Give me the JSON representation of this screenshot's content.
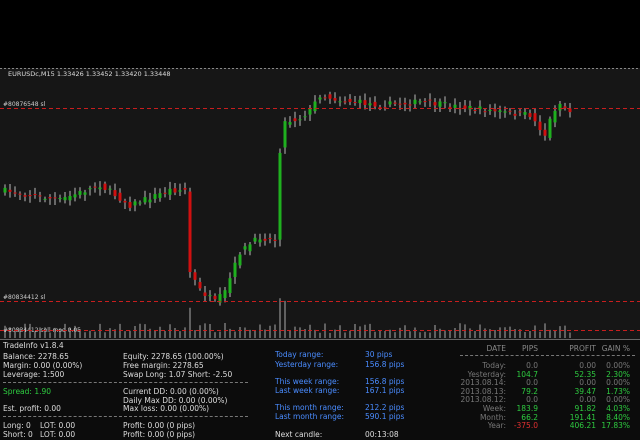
{
  "chart_window": {
    "symbol_line": "EURUSDc,M15 1.33426 1.33452 1.33420 1.33448",
    "sl_line_top": "#80876548 sl",
    "sl_line_bottom": "#80834412 sl",
    "order_line": "#80834412 sell moo 0.05"
  },
  "trade_info": {
    "title": "TradeInfo v1.8.4",
    "left": [
      {
        "text": "Balance: 2278.65",
        "col": 0,
        "row": 0
      },
      {
        "text": "Equity: 2278.65 (100.00%)",
        "col": 1,
        "row": 0
      },
      {
        "text": "Margin: 0.00 (0.00%)",
        "col": 0,
        "row": 1
      },
      {
        "text": "Free margin: 2278.65",
        "col": 1,
        "row": 1
      },
      {
        "text": "Leverage: 1:500",
        "col": 0,
        "row": 2
      },
      {
        "text": "Swap Long: 1.07 Short: -2.50",
        "col": 1,
        "row": 2
      },
      {
        "text": "Spread: 1.90",
        "col": 0,
        "row": 3
      },
      {
        "text": "Current  DD: 0.00 (0.00%)",
        "col": 1,
        "row": 3
      },
      {
        "text": "Daily Max DD: 0.00 (0.00%)",
        "col": 1,
        "row": 4
      },
      {
        "text": "Est. profit: 0.00",
        "col": 0,
        "row": 5
      },
      {
        "text": "Max loss: 0.00 (0.00%)",
        "col": 1,
        "row": 5
      },
      {
        "text": "Long: 0",
        "col": 0,
        "row": 6
      },
      {
        "text": "LOT: 0.00",
        "col": 2,
        "row": 6
      },
      {
        "text": "Profit: 0.00 (0 pips)",
        "col": 1,
        "row": 6
      },
      {
        "text": "Short: 0",
        "col": 0,
        "row": 7
      },
      {
        "text": "LOT: 0.00",
        "col": 2,
        "row": 7
      },
      {
        "text": "Profit: 0.00 (0 pips)",
        "col": 1,
        "row": 7
      }
    ],
    "ranges": [
      {
        "label": "Today range:",
        "value": "30 pips"
      },
      {
        "label": "Yesterday range:",
        "value": "156.8 pips"
      },
      {
        "label": "This week range:",
        "value": "156.8 pips"
      },
      {
        "label": "Last week range:",
        "value": "167.1 pips"
      },
      {
        "label": "This month range:",
        "value": "212.2 pips"
      },
      {
        "label": "Last month range:",
        "value": "590.1 pips"
      }
    ],
    "next_candle": {
      "label": "Next candle:",
      "value": "00:13:08"
    },
    "stats": {
      "headers": [
        "DATE",
        "PIPS",
        "PROFIT",
        "GAIN %"
      ],
      "rows": [
        [
          "Today:",
          "0.0",
          "0.00",
          "0.00%"
        ],
        [
          "Yesterday:",
          "104.7",
          "52.35",
          "2.30%"
        ],
        [
          "2013.08.14:",
          "0.0",
          "0.00",
          "0.00%"
        ],
        [
          "2013.08.13:",
          "79.2",
          "39.47",
          "1.73%"
        ],
        [
          "2013.08.12:",
          "0.0",
          "0.00",
          "0.00%"
        ],
        [
          "Week:",
          "183.9",
          "91.82",
          "4.03%"
        ],
        [
          "Month:",
          "66.2",
          "191.41",
          "8.40%"
        ],
        [
          "Year:",
          "-375.0",
          "406.21",
          "17.83%"
        ]
      ]
    }
  }
}
